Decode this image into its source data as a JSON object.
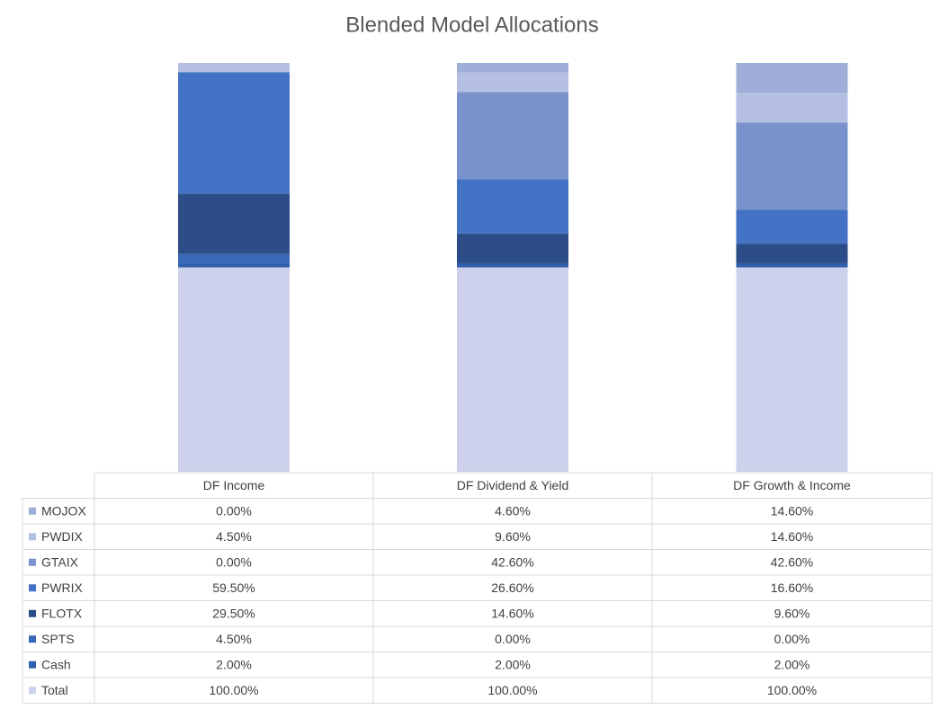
{
  "chart_data": {
    "type": "stacked_bar",
    "title": "Blended Model Allocations",
    "categories": [
      "DF Income",
      "DF Dividend & Yield",
      "DF Growth & Income"
    ],
    "ylim": [
      0,
      200
    ],
    "series": [
      {
        "name": "MOJOX",
        "color": "#9eaed9",
        "values": [
          0.0,
          4.6,
          14.6
        ],
        "value_labels": [
          "0.00%",
          "4.60%",
          "14.60%"
        ]
      },
      {
        "name": "PWDIX",
        "color": "#b4bfe3",
        "values": [
          4.5,
          9.6,
          14.6
        ],
        "value_labels": [
          "4.50%",
          "9.60%",
          "14.60%"
        ]
      },
      {
        "name": "GTAIX",
        "color": "#7a92cc",
        "values": [
          0.0,
          42.6,
          42.6
        ],
        "value_labels": [
          "0.00%",
          "42.60%",
          "42.60%"
        ]
      },
      {
        "name": "PWRIX",
        "color": "#4472c4",
        "values": [
          59.5,
          26.6,
          16.6
        ],
        "value_labels": [
          "59.50%",
          "26.60%",
          "16.60%"
        ]
      },
      {
        "name": "FLOTX",
        "color": "#2c4d87",
        "values": [
          29.5,
          14.6,
          9.6
        ],
        "value_labels": [
          "29.50%",
          "14.60%",
          "9.60%"
        ]
      },
      {
        "name": "SPTS",
        "color": "#3a67b8",
        "values": [
          4.5,
          0.0,
          0.0
        ],
        "value_labels": [
          "4.50%",
          "0.00%",
          "0.00%"
        ]
      },
      {
        "name": "Cash",
        "color": "#3060ad",
        "values": [
          2.0,
          2.0,
          2.0
        ],
        "value_labels": [
          "2.00%",
          "2.00%",
          "2.00%"
        ]
      },
      {
        "name": "Total",
        "color": "#cdd1eb",
        "values": [
          100.0,
          100.0,
          100.0
        ],
        "value_labels": [
          "100.00%",
          "100.00%",
          "100.00%"
        ]
      }
    ]
  }
}
